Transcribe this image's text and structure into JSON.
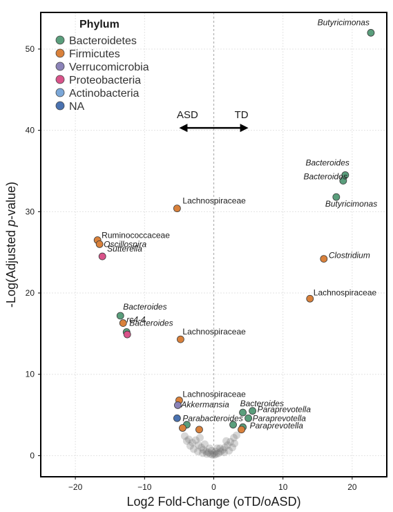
{
  "chart_data": {
    "type": "scatter",
    "xlabel": "Log2 Fold-Change (oTD/oASD)",
    "ylabel_prefix": "-Log(Adjusted ",
    "ylabel_italic": "p",
    "ylabel_suffix": "-value)",
    "xlim": [
      -25,
      25
    ],
    "ylim": [
      -2.6,
      54.5
    ],
    "xticks": [
      -20,
      -10,
      0,
      10,
      20
    ],
    "yticks": [
      0,
      10,
      20,
      30,
      40,
      50
    ],
    "grid": true,
    "legend": {
      "title": "Phylum",
      "position": "top-left",
      "entries": [
        {
          "name": "Bacteroidetes",
          "color": "#5a9e7c"
        },
        {
          "name": "Firmicutes",
          "color": "#d9813b"
        },
        {
          "name": "Verrucomicrobia",
          "color": "#8b83b8"
        },
        {
          "name": "Proteobacteria",
          "color": "#d9538a"
        },
        {
          "name": "Actinobacteria",
          "color": "#7ba7d8"
        },
        {
          "name": "NA",
          "color": "#4a72b0"
        }
      ]
    },
    "annotation": {
      "left_label": "ASD",
      "right_label": "TD",
      "x_from": -5,
      "x_to": 5,
      "y": 40.3
    },
    "points": [
      {
        "x": 22.7,
        "y": 52.0,
        "phylum": "Bacteroidetes",
        "label": "Butyricimonas",
        "italic": true
      },
      {
        "x": 19.0,
        "y": 34.5,
        "phylum": "Bacteroidetes",
        "label": "Bacteroides",
        "italic": true
      },
      {
        "x": 18.7,
        "y": 33.8,
        "phylum": "Bacteroidetes",
        "label": "Bacteroides",
        "italic": true
      },
      {
        "x": 17.7,
        "y": 31.8,
        "phylum": "Bacteroidetes",
        "label": "Butyricimonas",
        "italic": true
      },
      {
        "x": -5.3,
        "y": 30.4,
        "phylum": "Firmicutes",
        "label": "Lachnospiraceae",
        "italic": false
      },
      {
        "x": -16.8,
        "y": 26.5,
        "phylum": "Firmicutes",
        "label": "Ruminococcaceae",
        "italic": false
      },
      {
        "x": -16.5,
        "y": 26.0,
        "phylum": "Firmicutes",
        "label": "Oscillospira",
        "italic": true
      },
      {
        "x": -16.1,
        "y": 24.5,
        "phylum": "Proteobacteria",
        "label": "Sutterella",
        "italic": true
      },
      {
        "x": 15.9,
        "y": 24.2,
        "phylum": "Firmicutes",
        "label": "Clostridium",
        "italic": true
      },
      {
        "x": 13.9,
        "y": 19.3,
        "phylum": "Firmicutes",
        "label": "Lachnospiraceae",
        "italic": false
      },
      {
        "x": -13.5,
        "y": 17.2,
        "phylum": "Bacteroidetes",
        "label": "Bacteroides",
        "italic": true
      },
      {
        "x": -13.1,
        "y": 16.3,
        "phylum": "Firmicutes",
        "label": "rc4-4",
        "italic": true
      },
      {
        "x": -12.6,
        "y": 15.2,
        "phylum": "Bacteroidetes",
        "label": "Bacteroides",
        "italic": true
      },
      {
        "x": -12.5,
        "y": 14.9,
        "phylum": "Proteobacteria",
        "label": "",
        "italic": false
      },
      {
        "x": -4.8,
        "y": 14.3,
        "phylum": "Firmicutes",
        "label": "Lachnospiraceae",
        "italic": false
      },
      {
        "x": -5.0,
        "y": 6.8,
        "phylum": "Firmicutes",
        "label": "Lachnospiraceae",
        "italic": false
      },
      {
        "x": -5.2,
        "y": 6.2,
        "phylum": "Verrucomicrobia",
        "label": "Akkermansia",
        "italic": true
      },
      {
        "x": 4.2,
        "y": 5.3,
        "phylum": "Bacteroidetes",
        "label": "Bacteroides",
        "italic": true
      },
      {
        "x": 5.6,
        "y": 5.5,
        "phylum": "Bacteroidetes",
        "label": "Paraprevotella",
        "italic": true
      },
      {
        "x": -5.3,
        "y": 4.6,
        "phylum": "NA",
        "label": "Parabacteroides",
        "italic": true
      },
      {
        "x": 5.0,
        "y": 4.6,
        "phylum": "Bacteroidetes",
        "label": "Paraprevotella",
        "italic": true
      },
      {
        "x": 2.8,
        "y": 3.8,
        "phylum": "Bacteroidetes",
        "label": "",
        "italic": false
      },
      {
        "x": -3.9,
        "y": 3.8,
        "phylum": "Bacteroidetes",
        "label": "",
        "italic": false
      },
      {
        "x": -4.5,
        "y": 3.4,
        "phylum": "Firmicutes",
        "label": "",
        "italic": false
      },
      {
        "x": -2.1,
        "y": 3.2,
        "phylum": "Firmicutes",
        "label": "",
        "italic": false
      },
      {
        "x": 4.2,
        "y": 3.5,
        "phylum": "Bacteroidetes",
        "label": "Paraprevotella",
        "italic": true
      },
      {
        "x": 4.0,
        "y": 3.2,
        "phylum": "Firmicutes",
        "label": "",
        "italic": false
      }
    ],
    "background_points": [
      [
        -4.2,
        2.4
      ],
      [
        -3.6,
        2.0
      ],
      [
        -3.1,
        1.6
      ],
      [
        -2.6,
        1.9
      ],
      [
        -2.2,
        1.3
      ],
      [
        -1.8,
        1.0
      ],
      [
        -1.5,
        0.7
      ],
      [
        -1.1,
        0.5
      ],
      [
        -0.8,
        0.4
      ],
      [
        -0.5,
        0.2
      ],
      [
        -0.2,
        0.1
      ],
      [
        0.1,
        0.1
      ],
      [
        0.4,
        0.2
      ],
      [
        0.7,
        0.3
      ],
      [
        1.0,
        0.5
      ],
      [
        1.3,
        0.7
      ],
      [
        1.6,
        1.0
      ],
      [
        2.0,
        1.3
      ],
      [
        2.4,
        1.7
      ],
      [
        2.9,
        2.2
      ],
      [
        3.3,
        2.5
      ],
      [
        -2.9,
        0.8
      ],
      [
        -2.3,
        0.5
      ],
      [
        -1.6,
        0.3
      ],
      [
        -1.0,
        0.2
      ],
      [
        0.9,
        0.9
      ],
      [
        1.5,
        0.4
      ],
      [
        2.2,
        0.6
      ],
      [
        2.7,
        1.0
      ],
      [
        -3.4,
        1.2
      ],
      [
        -0.3,
        0.6
      ],
      [
        0.5,
        0.9
      ],
      [
        -1.3,
        1.4
      ],
      [
        1.8,
        1.8
      ],
      [
        -2.0,
        2.2
      ],
      [
        0.0,
        0.3
      ],
      [
        -0.6,
        0.9
      ],
      [
        0.3,
        0.5
      ],
      [
        3.0,
        1.5
      ],
      [
        -3.9,
        1.8
      ]
    ]
  }
}
